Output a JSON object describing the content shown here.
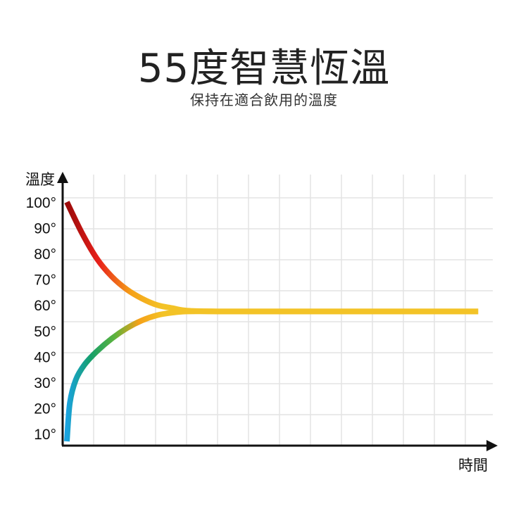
{
  "header": {
    "title": "55度智慧恆溫",
    "subtitle": "保持在適合飲用的溫度"
  },
  "chart_data": {
    "type": "line",
    "ylabel": "溫度",
    "xlabel": "時間",
    "ylim": [
      5,
      105
    ],
    "yticks": [
      {
        "value": 100,
        "label": "100°"
      },
      {
        "value": 90,
        "label": "90°"
      },
      {
        "value": 80,
        "label": "80°"
      },
      {
        "value": 70,
        "label": "70°"
      },
      {
        "value": 60,
        "label": "60°"
      },
      {
        "value": 50,
        "label": "50°"
      },
      {
        "value": 40,
        "label": "40°"
      },
      {
        "value": 30,
        "label": "30°"
      },
      {
        "value": 20,
        "label": "20°"
      },
      {
        "value": 10,
        "label": "10°"
      }
    ],
    "xlim": [
      0,
      14
    ],
    "grid": true,
    "series": [
      {
        "x": [
          0,
          0.5,
          1,
          1.5,
          2,
          2.5,
          3,
          3.5,
          4,
          5,
          6,
          8,
          10,
          12,
          13.7
        ],
        "values": [
          100,
          88,
          78,
          71,
          66,
          62.5,
          60,
          58.8,
          57.8,
          57.5,
          57.5,
          57.5,
          57.5,
          57.5,
          57.5
        ],
        "colors": [
          "#9b0a0a",
          "#e8201a",
          "#f5a118",
          "#f3c327"
        ]
      },
      {
        "x": [
          0,
          0.1,
          0.3,
          0.6,
          1,
          1.5,
          2,
          2.5,
          3,
          3.5,
          4,
          5,
          6,
          8,
          10,
          12,
          13.7
        ],
        "values": [
          7,
          22,
          31,
          37,
          42,
          47,
          51,
          54,
          56,
          57,
          57.5,
          57.5,
          57.5,
          57.5,
          57.5,
          57.5,
          57.5
        ],
        "colors": [
          "#1aa3e0",
          "#16a06a",
          "#5db33c",
          "#f5a118",
          "#f3c327"
        ]
      }
    ]
  }
}
